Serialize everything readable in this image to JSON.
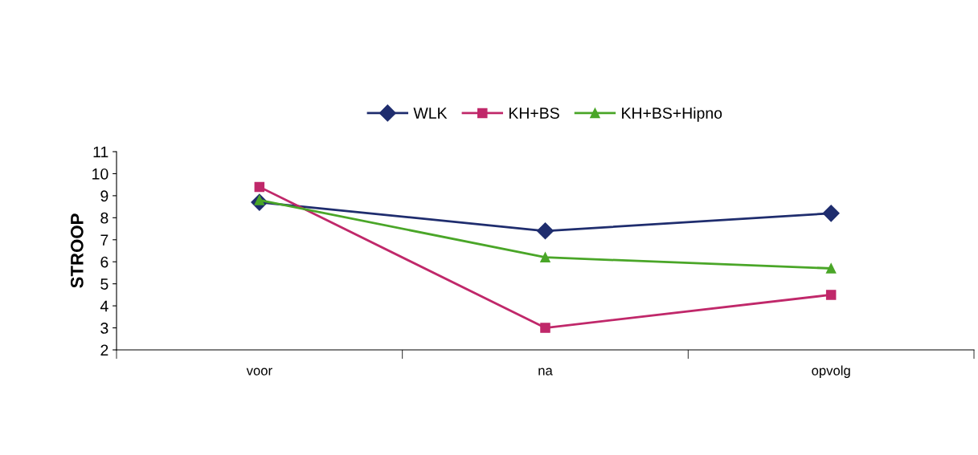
{
  "chart_data": {
    "type": "line",
    "ylabel": "STROOP",
    "categories": [
      "voor",
      "na",
      "opvolg"
    ],
    "series": [
      {
        "name": "WLK",
        "color": "#1f2d6e",
        "marker": "diamond",
        "values": [
          8.7,
          7.4,
          8.2
        ]
      },
      {
        "name": "KH+BS",
        "color": "#c0286a",
        "marker": "square",
        "values": [
          9.4,
          3.0,
          4.5
        ]
      },
      {
        "name": "KH+BS+Hipno",
        "color": "#4aa628",
        "marker": "triangle",
        "values": [
          8.8,
          6.2,
          5.7
        ]
      }
    ],
    "ylim": [
      2,
      11
    ],
    "yticks": [
      2,
      3,
      4,
      5,
      6,
      7,
      8,
      9,
      10,
      11
    ],
    "grid": false,
    "legend": "top",
    "line_style": "solid"
  }
}
